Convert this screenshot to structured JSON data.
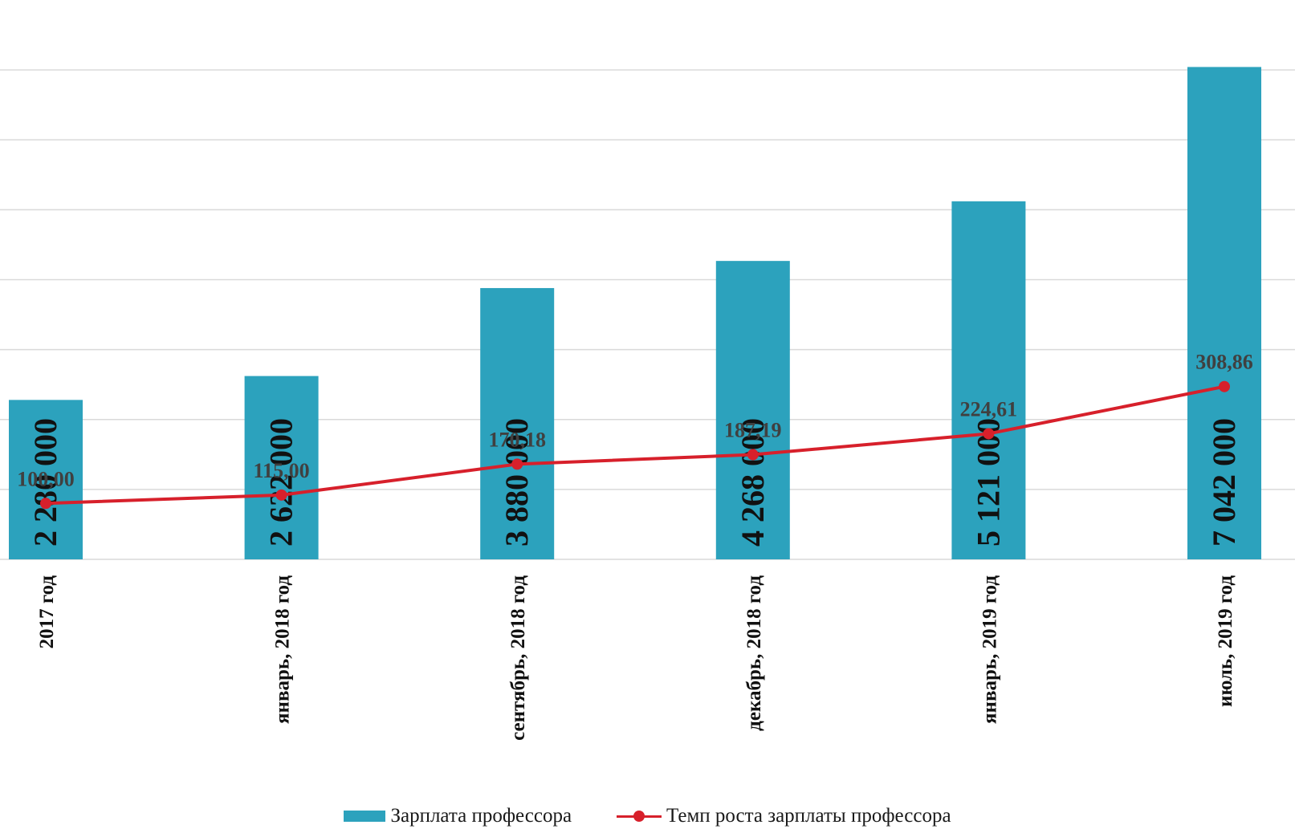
{
  "chart_data": {
    "type": "bar",
    "title": "",
    "xlabel": "",
    "ylabel": "",
    "categories": [
      "2017 год",
      "январь, 2018 год",
      "сентябрь, 2018 год",
      "декабрь, 2018 год",
      "январь, 2019 год",
      "июль, 2019 год"
    ],
    "series": [
      {
        "name": "Зарплата профессора",
        "kind": "bar",
        "values": [
          2280000,
          2622000,
          3880000,
          4268000,
          5121000,
          7042000
        ],
        "labels": [
          "2 280 000",
          "2 622 000",
          "3 880 000",
          "4 268 000",
          "5 121 000",
          "7 042 000"
        ],
        "color": "#2ca2bd"
      },
      {
        "name": "Темп роста зарплаты профессора",
        "kind": "line",
        "values": [
          100.0,
          115.0,
          170.18,
          187.19,
          224.61,
          308.86
        ],
        "labels": [
          "100,00",
          "115,00",
          "170,18",
          "187,19",
          "224,61",
          "308,86"
        ],
        "color": "#d7202b"
      }
    ],
    "bar_axis": {
      "ylim": [
        0,
        8000000
      ],
      "gridlines": 8
    },
    "line_axis": {
      "ylim": [
        0,
        1000
      ]
    },
    "grid": true,
    "legend_position": "bottom"
  },
  "legend": {
    "bar_label": "Зарплата профессора",
    "line_label": "Темп роста зарплаты профессора"
  }
}
